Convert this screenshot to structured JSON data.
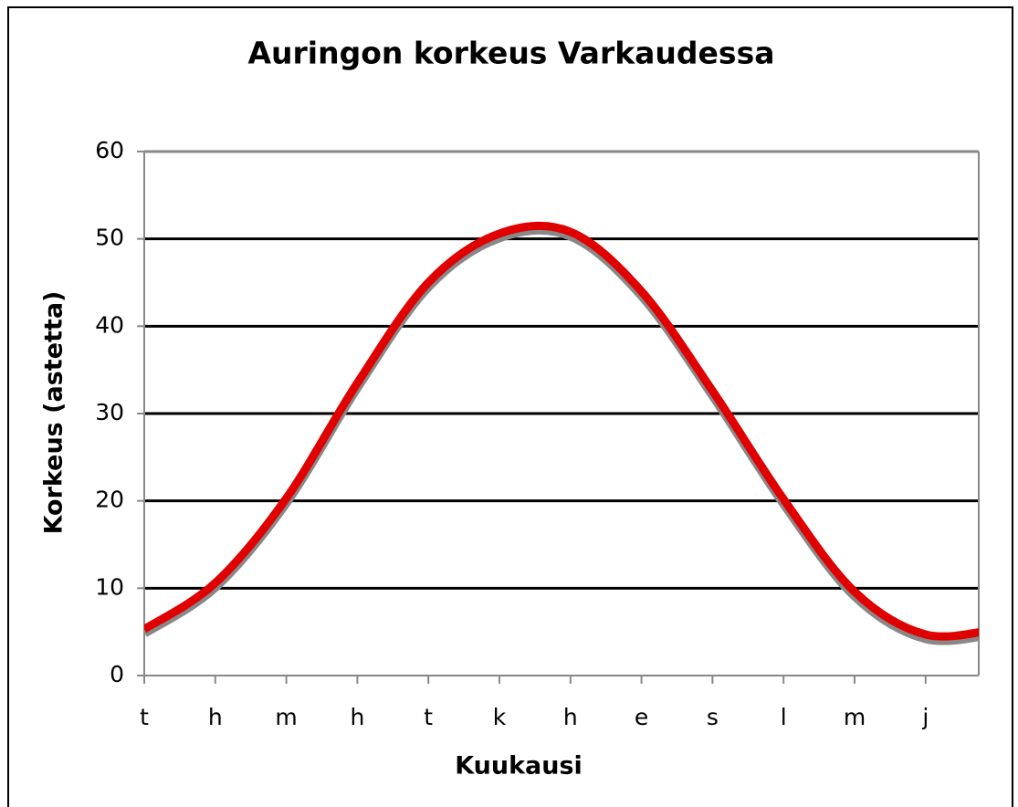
{
  "chart_data": {
    "type": "line",
    "title": "Auringon korkeus Varkaudessa",
    "xlabel": "Kuukausi",
    "ylabel": "Korkeus (astetta)",
    "categories": [
      "t",
      "h",
      "m",
      "h",
      "t",
      "k",
      "h",
      "e",
      "s",
      "l",
      "m",
      "j",
      null
    ],
    "series": [
      {
        "name": null,
        "color": "#e00000",
        "values": [
          5.3,
          10.6,
          20.3,
          33.5,
          45,
          50.6,
          50.8,
          44,
          32.6,
          20.2,
          9.6,
          4.7,
          5.3
        ]
      }
    ],
    "ylim": [
      0,
      60
    ],
    "yticks": [
      0,
      10,
      20,
      30,
      40,
      50,
      60
    ],
    "grid": true
  }
}
